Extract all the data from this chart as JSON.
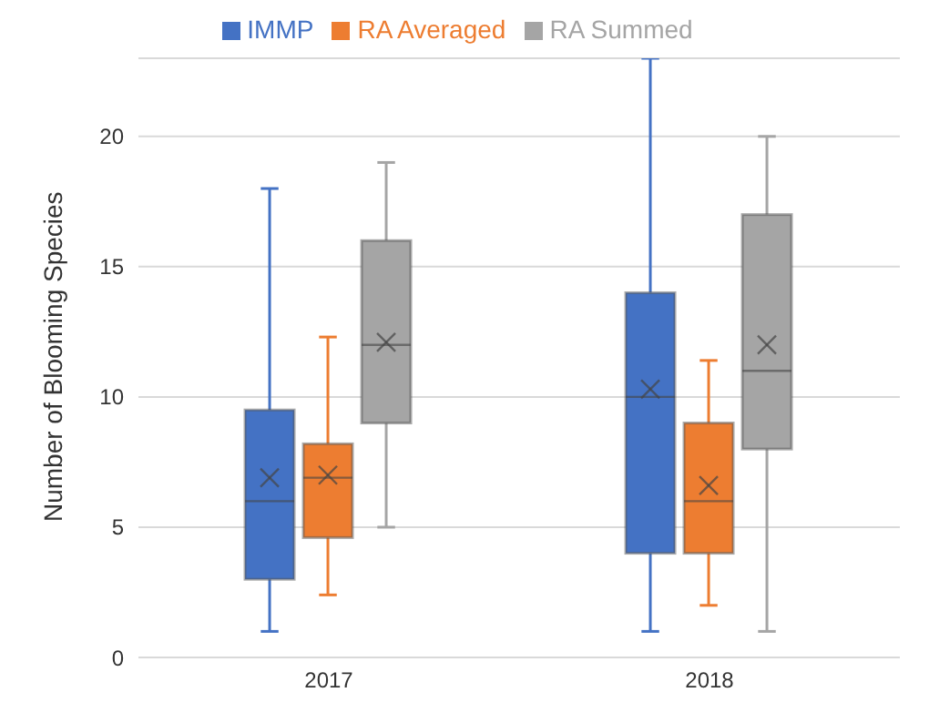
{
  "chart_data": {
    "type": "box",
    "ylabel": "Number of Blooming Species",
    "categories": [
      "2017",
      "2018"
    ],
    "ylim": [
      0,
      23
    ],
    "yticks": [
      0,
      5,
      10,
      15,
      20
    ],
    "grid": "y",
    "legend": "top",
    "series": [
      {
        "name": "IMMP",
        "color": "#4472c4",
        "boxes": [
          {
            "low": 1,
            "q1": 3,
            "median": 6,
            "q3": 9.5,
            "high": 18,
            "mean": 6.9
          },
          {
            "low": 1,
            "q1": 4,
            "median": 10,
            "q3": 14,
            "high": 23,
            "mean": 10.3
          }
        ]
      },
      {
        "name": "RA Averaged",
        "color": "#ed7d31",
        "boxes": [
          {
            "low": 2.4,
            "q1": 4.6,
            "median": 6.9,
            "q3": 8.2,
            "high": 12.3,
            "mean": 7
          },
          {
            "low": 2,
            "q1": 4,
            "median": 6,
            "q3": 9,
            "high": 11.4,
            "mean": 6.6
          }
        ]
      },
      {
        "name": "RA Summed",
        "color": "#a5a5a5",
        "boxes": [
          {
            "low": 5,
            "q1": 9,
            "median": 12,
            "q3": 16,
            "high": 19,
            "mean": 12.1
          },
          {
            "low": 1,
            "q1": 8,
            "median": 11,
            "q3": 17,
            "high": 20,
            "mean": 12
          }
        ]
      }
    ]
  }
}
